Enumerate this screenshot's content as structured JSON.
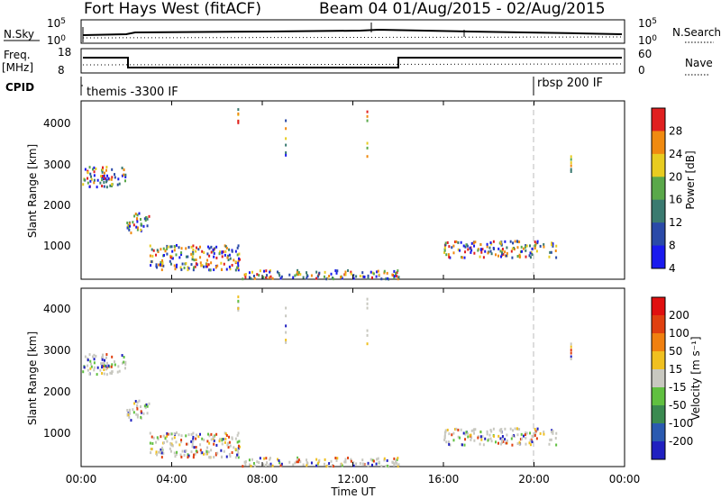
{
  "header": {
    "station": "Fort Hays West (fitACF)",
    "beam_date": "Beam 04 01/Aug/2015 - 02/Aug/2015"
  },
  "top_panels": {
    "nsky_label": "N.Sky",
    "nsearch_label": "N.Search",
    "nsky_ticks": [
      "10^5",
      "10^0"
    ],
    "nsearch_ticks": [
      "10^5",
      "10^0"
    ],
    "freq_label": "Freq.",
    "freq_unit": "[MHz]",
    "freq_ticks": [
      "18",
      "8"
    ],
    "nave_label": "Nave",
    "nave_ticks": [
      "60",
      "0"
    ],
    "cpid_label": "CPID",
    "cpid_segments": [
      {
        "label": "themis -3300 IF",
        "start_hour": 0
      },
      {
        "label": "rbsp 200 IF",
        "start_hour": 20
      }
    ],
    "freq_series": [
      {
        "start_hour": 0,
        "end_hour": 2,
        "value": "high"
      },
      {
        "start_hour": 2,
        "end_hour": 14,
        "value": "low"
      },
      {
        "start_hour": 14,
        "end_hour": 24,
        "value": "high"
      }
    ]
  },
  "chart_data": [
    {
      "type": "heatmap",
      "panel": "power",
      "ylabel": "Slant Range [km]",
      "yticks": [
        "1000",
        "2000",
        "3000",
        "4000"
      ],
      "ylim": [
        180,
        4500
      ],
      "colorbar_label": "Power [dB]",
      "colorbar_ticks": [
        "4",
        "8",
        "12",
        "16",
        "20",
        "24",
        "28"
      ],
      "colorbar_colors": [
        "#1a1aee",
        "#2a4aa8",
        "#3a7a70",
        "#5aa84a",
        "#e8cc20",
        "#f08a10",
        "#e02020"
      ],
      "echo_regions_hours_km": [
        {
          "x": [
            0,
            2
          ],
          "y": [
            2400,
            2900
          ]
        },
        {
          "x": [
            2,
            3
          ],
          "y": [
            1300,
            1800
          ]
        },
        {
          "x": [
            3,
            7
          ],
          "y": [
            400,
            1000
          ]
        },
        {
          "x": [
            7,
            14
          ],
          "y": [
            180,
            400
          ]
        },
        {
          "x": [
            16,
            21
          ],
          "y": [
            700,
            1100
          ]
        }
      ]
    },
    {
      "type": "heatmap",
      "panel": "velocity",
      "ylabel": "Slant Range [km]",
      "yticks": [
        "1000",
        "2000",
        "3000",
        "4000"
      ],
      "ylim": [
        180,
        4500
      ],
      "colorbar_label": "Velocity [m s⁻¹]",
      "colorbar_ticks": [
        "200",
        "100",
        "50",
        "15",
        "-15",
        "-50",
        "-100",
        "-200"
      ],
      "colorbar_colors": [
        "#2020c0",
        "#2a5ab0",
        "#3a8a50",
        "#60c040",
        "#c8c8c0",
        "#f0c020",
        "#f08010",
        "#e04010",
        "#e01010"
      ],
      "x_ticks": [
        "00:00",
        "04:00",
        "08:00",
        "12:00",
        "16:00",
        "20:00",
        "00:00"
      ],
      "xlabel": "Time UT",
      "x_range_hours": [
        0,
        24
      ]
    }
  ]
}
